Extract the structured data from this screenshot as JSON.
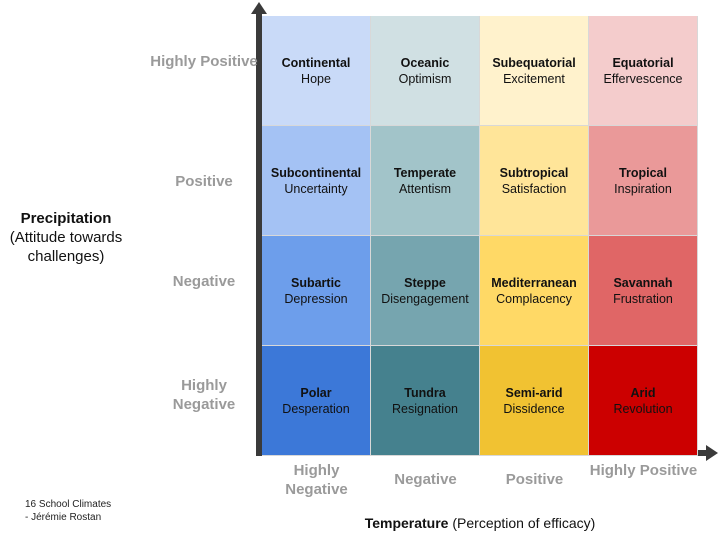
{
  "y_axis": {
    "title": "Precipitation",
    "subtitle": "(Attitude towards challenges)",
    "labels": [
      "Highly Positive",
      "Positive",
      "Negative",
      "Highly Negative"
    ]
  },
  "x_axis": {
    "title": "Temperature",
    "subtitle": "(Perception of efficacy)",
    "labels": [
      "Highly Negative",
      "Negative",
      "Positive",
      "Highly Positive"
    ]
  },
  "credit": {
    "line1": "16  School Climates",
    "line2": "- Jérémie Rostan"
  },
  "colors": {
    "axis": "#3a3a3a",
    "label_gray": "#9a9a9a"
  },
  "grid": [
    [
      {
        "title": "Continental",
        "sub": "Hope",
        "color": "#c9daf8"
      },
      {
        "title": "Oceanic",
        "sub": "Optimism",
        "color": "#d0e0e3"
      },
      {
        "title": "Subequatorial",
        "sub": "Excitement",
        "color": "#fff2cc"
      },
      {
        "title": "Equatorial",
        "sub": "Effervescence",
        "color": "#f4cccc"
      }
    ],
    [
      {
        "title": "Subcontinental",
        "sub": "Uncertainty",
        "color": "#a4c2f4"
      },
      {
        "title": "Temperate",
        "sub": "Attentism",
        "color": "#a2c4c9"
      },
      {
        "title": "Subtropical",
        "sub": "Satisfaction",
        "color": "#ffe599"
      },
      {
        "title": "Tropical",
        "sub": "Inspiration",
        "color": "#ea9999"
      }
    ],
    [
      {
        "title": "Subartic",
        "sub": "Depression",
        "color": "#6d9eeb"
      },
      {
        "title": "Steppe",
        "sub": "Disengagement",
        "color": "#76a5af"
      },
      {
        "title": "Mediterranean",
        "sub": "Complacency",
        "color": "#ffd966"
      },
      {
        "title": "Savannah",
        "sub": "Frustration",
        "color": "#e06666"
      }
    ],
    [
      {
        "title": "Polar",
        "sub": "Desperation",
        "color": "#3c78d8"
      },
      {
        "title": "Tundra",
        "sub": "Resignation",
        "color": "#45818e"
      },
      {
        "title": "Semi-arid",
        "sub": "Dissidence",
        "color": "#f1c232"
      },
      {
        "title": "Arid",
        "sub": "Revolution",
        "color": "#cc0000"
      }
    ]
  ]
}
